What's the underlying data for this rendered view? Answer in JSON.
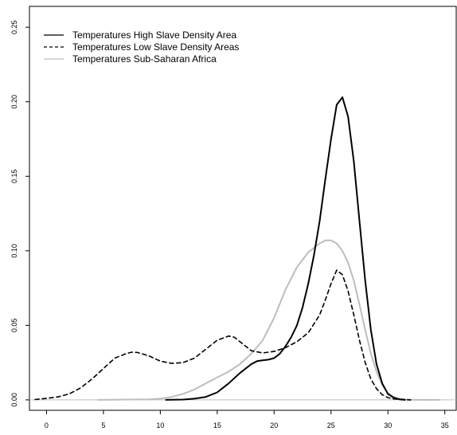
{
  "chart_data": {
    "type": "line",
    "title": "",
    "xlabel": "",
    "ylabel": "",
    "xlim": [
      -1.5,
      36
    ],
    "ylim": [
      -0.007,
      0.264
    ],
    "x_ticks": [
      "0",
      "5",
      "10",
      "15",
      "20",
      "25",
      "30",
      "35"
    ],
    "y_ticks": [
      "0.00",
      "0.05",
      "0.10",
      "0.15",
      "0.20",
      "0.25"
    ],
    "grid": false,
    "legend_position": "top-left",
    "baseline": 0,
    "series": [
      {
        "name": "Temperatures High Slave Density Area",
        "color": "#000000",
        "style": "solid",
        "x": [
          10.5,
          12,
          13,
          14,
          15,
          16,
          17,
          18,
          18.5,
          19,
          19.5,
          20,
          20.5,
          21,
          21.5,
          22,
          22.5,
          23,
          23.5,
          24,
          24.5,
          25,
          25.5,
          26,
          26.5,
          27,
          27.5,
          28,
          28.5,
          29,
          29.5,
          30,
          30.5,
          31,
          31.5
        ],
        "y": [
          0.0,
          0.0002,
          0.0008,
          0.002,
          0.005,
          0.011,
          0.018,
          0.024,
          0.026,
          0.0265,
          0.027,
          0.028,
          0.031,
          0.036,
          0.042,
          0.05,
          0.062,
          0.078,
          0.097,
          0.12,
          0.148,
          0.175,
          0.198,
          0.203,
          0.19,
          0.16,
          0.12,
          0.08,
          0.047,
          0.024,
          0.011,
          0.004,
          0.0015,
          0.0004,
          0.0
        ]
      },
      {
        "name": "Temperatures Low Slave Density Areas",
        "color": "#000000",
        "style": "dashed",
        "x": [
          -1,
          0,
          1,
          2,
          3,
          4,
          5,
          6,
          7,
          7.5,
          8,
          9,
          10,
          11,
          12,
          13,
          14,
          15,
          16,
          16.5,
          17,
          18,
          19,
          20,
          21,
          22,
          23,
          24,
          24.5,
          25,
          25.5,
          26,
          26.5,
          27,
          27.5,
          28,
          28.5,
          29,
          29.5,
          30,
          30.5,
          31,
          31.5,
          32
        ],
        "y": [
          0.0002,
          0.001,
          0.002,
          0.004,
          0.008,
          0.014,
          0.021,
          0.028,
          0.031,
          0.032,
          0.0318,
          0.0295,
          0.026,
          0.0245,
          0.025,
          0.028,
          0.034,
          0.04,
          0.0428,
          0.042,
          0.039,
          0.033,
          0.0315,
          0.0325,
          0.035,
          0.039,
          0.045,
          0.057,
          0.067,
          0.078,
          0.087,
          0.084,
          0.073,
          0.057,
          0.04,
          0.025,
          0.014,
          0.0075,
          0.0035,
          0.0015,
          0.0007,
          0.0003,
          0.0001,
          0.0
        ]
      },
      {
        "name": "Temperatures Sub-Saharan Africa",
        "color": "#bdbdbd",
        "style": "solid",
        "x": [
          4.5,
          9,
          10,
          11,
          12,
          13,
          14,
          15,
          16,
          17,
          18,
          19,
          20,
          21,
          22,
          23,
          24,
          24.5,
          25,
          25.5,
          26,
          26.5,
          27,
          27.5,
          28,
          28.5,
          29,
          29.5,
          30,
          30.5,
          31,
          31.5,
          32,
          33,
          34.5
        ],
        "y": [
          0.0,
          0.0003,
          0.0008,
          0.002,
          0.004,
          0.007,
          0.011,
          0.015,
          0.019,
          0.024,
          0.031,
          0.04,
          0.055,
          0.074,
          0.089,
          0.099,
          0.105,
          0.107,
          0.107,
          0.105,
          0.1,
          0.092,
          0.08,
          0.064,
          0.047,
          0.031,
          0.019,
          0.01,
          0.0045,
          0.002,
          0.0008,
          0.0003,
          0.0001,
          0.0,
          0.0
        ]
      }
    ]
  }
}
